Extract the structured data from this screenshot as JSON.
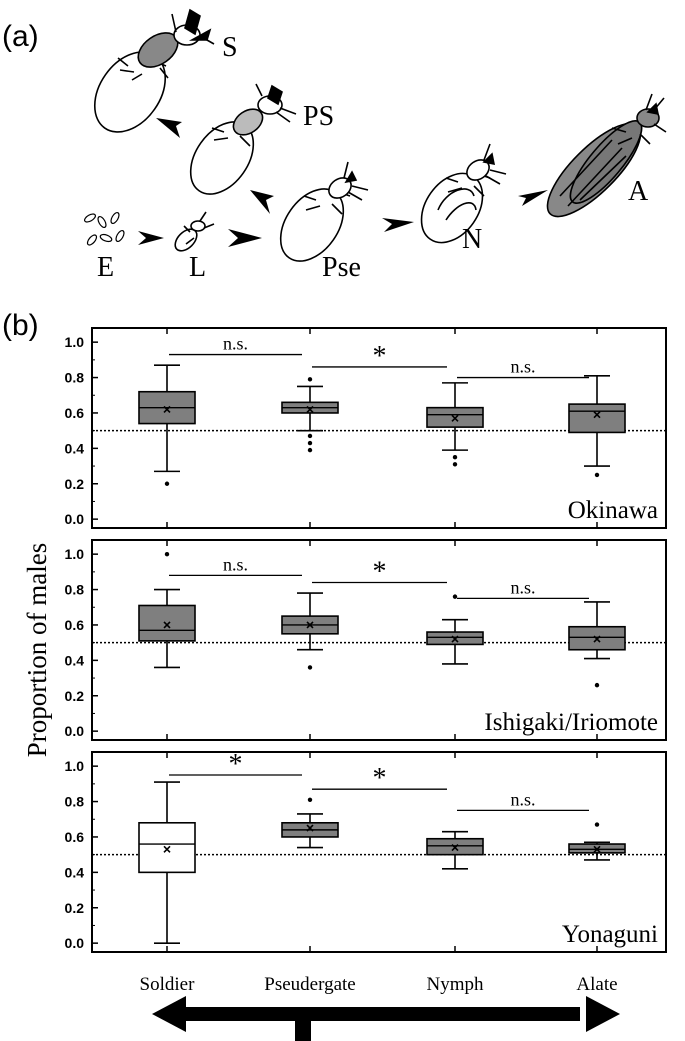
{
  "panel_a": {
    "label": "(a)",
    "stages": {
      "S": "S",
      "PS": "PS",
      "E": "E",
      "L": "L",
      "Pse": "Pse",
      "N": "N",
      "A": "A"
    }
  },
  "panel_b": {
    "label": "(b)",
    "ylabel": "Proportion of males",
    "categories": [
      "Soldier",
      "Pseudergate",
      "Nymph",
      "Alate"
    ]
  },
  "chart_data": [
    {
      "type": "box",
      "title": "Okinawa",
      "ylabel": "Proportion of males",
      "categories": [
        "Soldier",
        "Pseudergate",
        "Nymph",
        "Alate"
      ],
      "ylim": [
        -0.05,
        1.08
      ],
      "yticks": [
        "0.0",
        "0.2",
        "0.4",
        "0.6",
        "0.8",
        "1.0"
      ],
      "reference_line": 0.5,
      "boxes": [
        {
          "category": "Soldier",
          "whisker_low": 0.27,
          "q1": 0.54,
          "median": 0.63,
          "q3": 0.72,
          "whisker_high": 0.87,
          "mean": 0.62,
          "outliers": [
            0.2
          ],
          "fill": "#7f7f7f"
        },
        {
          "category": "Pseudergate",
          "whisker_low": 0.5,
          "q1": 0.6,
          "median": 0.63,
          "q3": 0.66,
          "whisker_high": 0.75,
          "mean": 0.62,
          "outliers": [
            0.79,
            0.47,
            0.43,
            0.39
          ],
          "fill": "#7f7f7f"
        },
        {
          "category": "Nymph",
          "whisker_low": 0.39,
          "q1": 0.52,
          "median": 0.59,
          "q3": 0.63,
          "whisker_high": 0.77,
          "mean": 0.57,
          "outliers": [
            0.35,
            0.31
          ],
          "fill": "#7f7f7f"
        },
        {
          "category": "Alate",
          "whisker_low": 0.3,
          "q1": 0.49,
          "median": 0.61,
          "q3": 0.65,
          "whisker_high": 0.81,
          "mean": 0.59,
          "outliers": [
            0.25
          ],
          "fill": "#7f7f7f"
        }
      ],
      "comparisons": [
        {
          "pair": [
            "Soldier",
            "Pseudergate"
          ],
          "label": "n.s.",
          "y": 0.93
        },
        {
          "pair": [
            "Pseudergate",
            "Nymph"
          ],
          "label": "*",
          "y": 0.86
        },
        {
          "pair": [
            "Nymph",
            "Alate"
          ],
          "label": "n.s.",
          "y": 0.8
        }
      ]
    },
    {
      "type": "box",
      "title": "Ishigaki/Iriomote",
      "ylabel": "Proportion of males",
      "categories": [
        "Soldier",
        "Pseudergate",
        "Nymph",
        "Alate"
      ],
      "ylim": [
        -0.05,
        1.08
      ],
      "yticks": [
        "0.0",
        "0.2",
        "0.4",
        "0.6",
        "0.8",
        "1.0"
      ],
      "reference_line": 0.5,
      "boxes": [
        {
          "category": "Soldier",
          "whisker_low": 0.36,
          "q1": 0.51,
          "median": 0.57,
          "q3": 0.71,
          "whisker_high": 0.8,
          "mean": 0.6,
          "outliers": [
            1.0
          ],
          "fill": "#7f7f7f"
        },
        {
          "category": "Pseudergate",
          "whisker_low": 0.46,
          "q1": 0.55,
          "median": 0.6,
          "q3": 0.65,
          "whisker_high": 0.78,
          "mean": 0.6,
          "outliers": [
            0.36
          ],
          "fill": "#7f7f7f"
        },
        {
          "category": "Nymph",
          "whisker_low": 0.38,
          "q1": 0.49,
          "median": 0.53,
          "q3": 0.56,
          "whisker_high": 0.63,
          "mean": 0.52,
          "outliers": [
            0.76
          ],
          "fill": "#7f7f7f"
        },
        {
          "category": "Alate",
          "whisker_low": 0.41,
          "q1": 0.46,
          "median": 0.53,
          "q3": 0.59,
          "whisker_high": 0.73,
          "mean": 0.52,
          "outliers": [
            0.26
          ],
          "fill": "#7f7f7f"
        }
      ],
      "comparisons": [
        {
          "pair": [
            "Soldier",
            "Pseudergate"
          ],
          "label": "n.s.",
          "y": 0.88
        },
        {
          "pair": [
            "Pseudergate",
            "Nymph"
          ],
          "label": "*",
          "y": 0.84
        },
        {
          "pair": [
            "Nymph",
            "Alate"
          ],
          "label": "n.s.",
          "y": 0.75
        }
      ]
    },
    {
      "type": "box",
      "title": "Yonaguni",
      "ylabel": "Proportion of males",
      "categories": [
        "Soldier",
        "Pseudergate",
        "Nymph",
        "Alate"
      ],
      "ylim": [
        -0.05,
        1.08
      ],
      "yticks": [
        "0.0",
        "0.2",
        "0.4",
        "0.6",
        "0.8",
        "1.0"
      ],
      "reference_line": 0.5,
      "boxes": [
        {
          "category": "Soldier",
          "whisker_low": 0.0,
          "q1": 0.4,
          "median": 0.56,
          "q3": 0.68,
          "whisker_high": 0.91,
          "mean": 0.53,
          "outliers": [],
          "fill": "#ffffff"
        },
        {
          "category": "Pseudergate",
          "whisker_low": 0.54,
          "q1": 0.6,
          "median": 0.64,
          "q3": 0.68,
          "whisker_high": 0.73,
          "mean": 0.65,
          "outliers": [
            0.81
          ],
          "fill": "#7f7f7f"
        },
        {
          "category": "Nymph",
          "whisker_low": 0.42,
          "q1": 0.5,
          "median": 0.55,
          "q3": 0.59,
          "whisker_high": 0.63,
          "mean": 0.54,
          "outliers": [],
          "fill": "#7f7f7f"
        },
        {
          "category": "Alate",
          "whisker_low": 0.47,
          "q1": 0.51,
          "median": 0.53,
          "q3": 0.56,
          "whisker_high": 0.57,
          "mean": 0.53,
          "outliers": [
            0.67
          ],
          "fill": "#7f7f7f"
        }
      ],
      "comparisons": [
        {
          "pair": [
            "Soldier",
            "Pseudergate"
          ],
          "label": "*",
          "y": 0.95
        },
        {
          "pair": [
            "Pseudergate",
            "Nymph"
          ],
          "label": "*",
          "y": 0.87
        },
        {
          "pair": [
            "Nymph",
            "Alate"
          ],
          "label": "n.s.",
          "y": 0.75
        }
      ]
    }
  ]
}
